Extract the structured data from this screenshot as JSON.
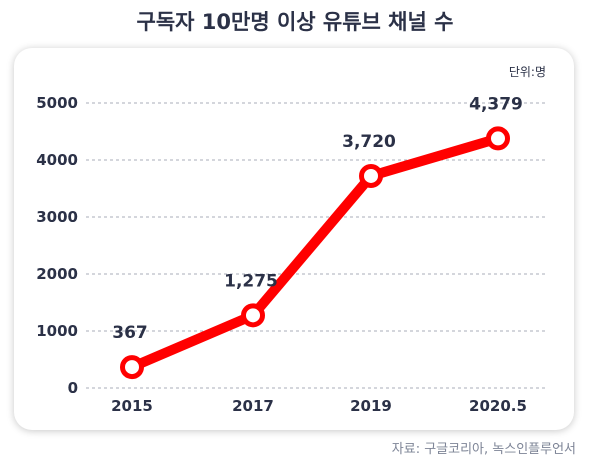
{
  "chart_data": {
    "type": "line",
    "title": "구독자 10만명 이상 유튜브 채널 수",
    "unit_label": "단위:명",
    "categories": [
      "2015",
      "2017",
      "2019",
      "2020.5"
    ],
    "values": [
      367,
      1275,
      3720,
      4379
    ],
    "data_labels": [
      "367",
      "1,275",
      "3,720",
      "4,379"
    ],
    "y_ticks": [
      0,
      1000,
      2000,
      3000,
      4000,
      5000
    ],
    "y_tick_labels": [
      "0",
      "1000",
      "2000",
      "3000",
      "4000",
      "5000"
    ],
    "ylim": [
      0,
      5000
    ],
    "grid": true,
    "line_color": "#ff0000",
    "source": "자료: 구글코리아, 녹스인플루언서"
  }
}
